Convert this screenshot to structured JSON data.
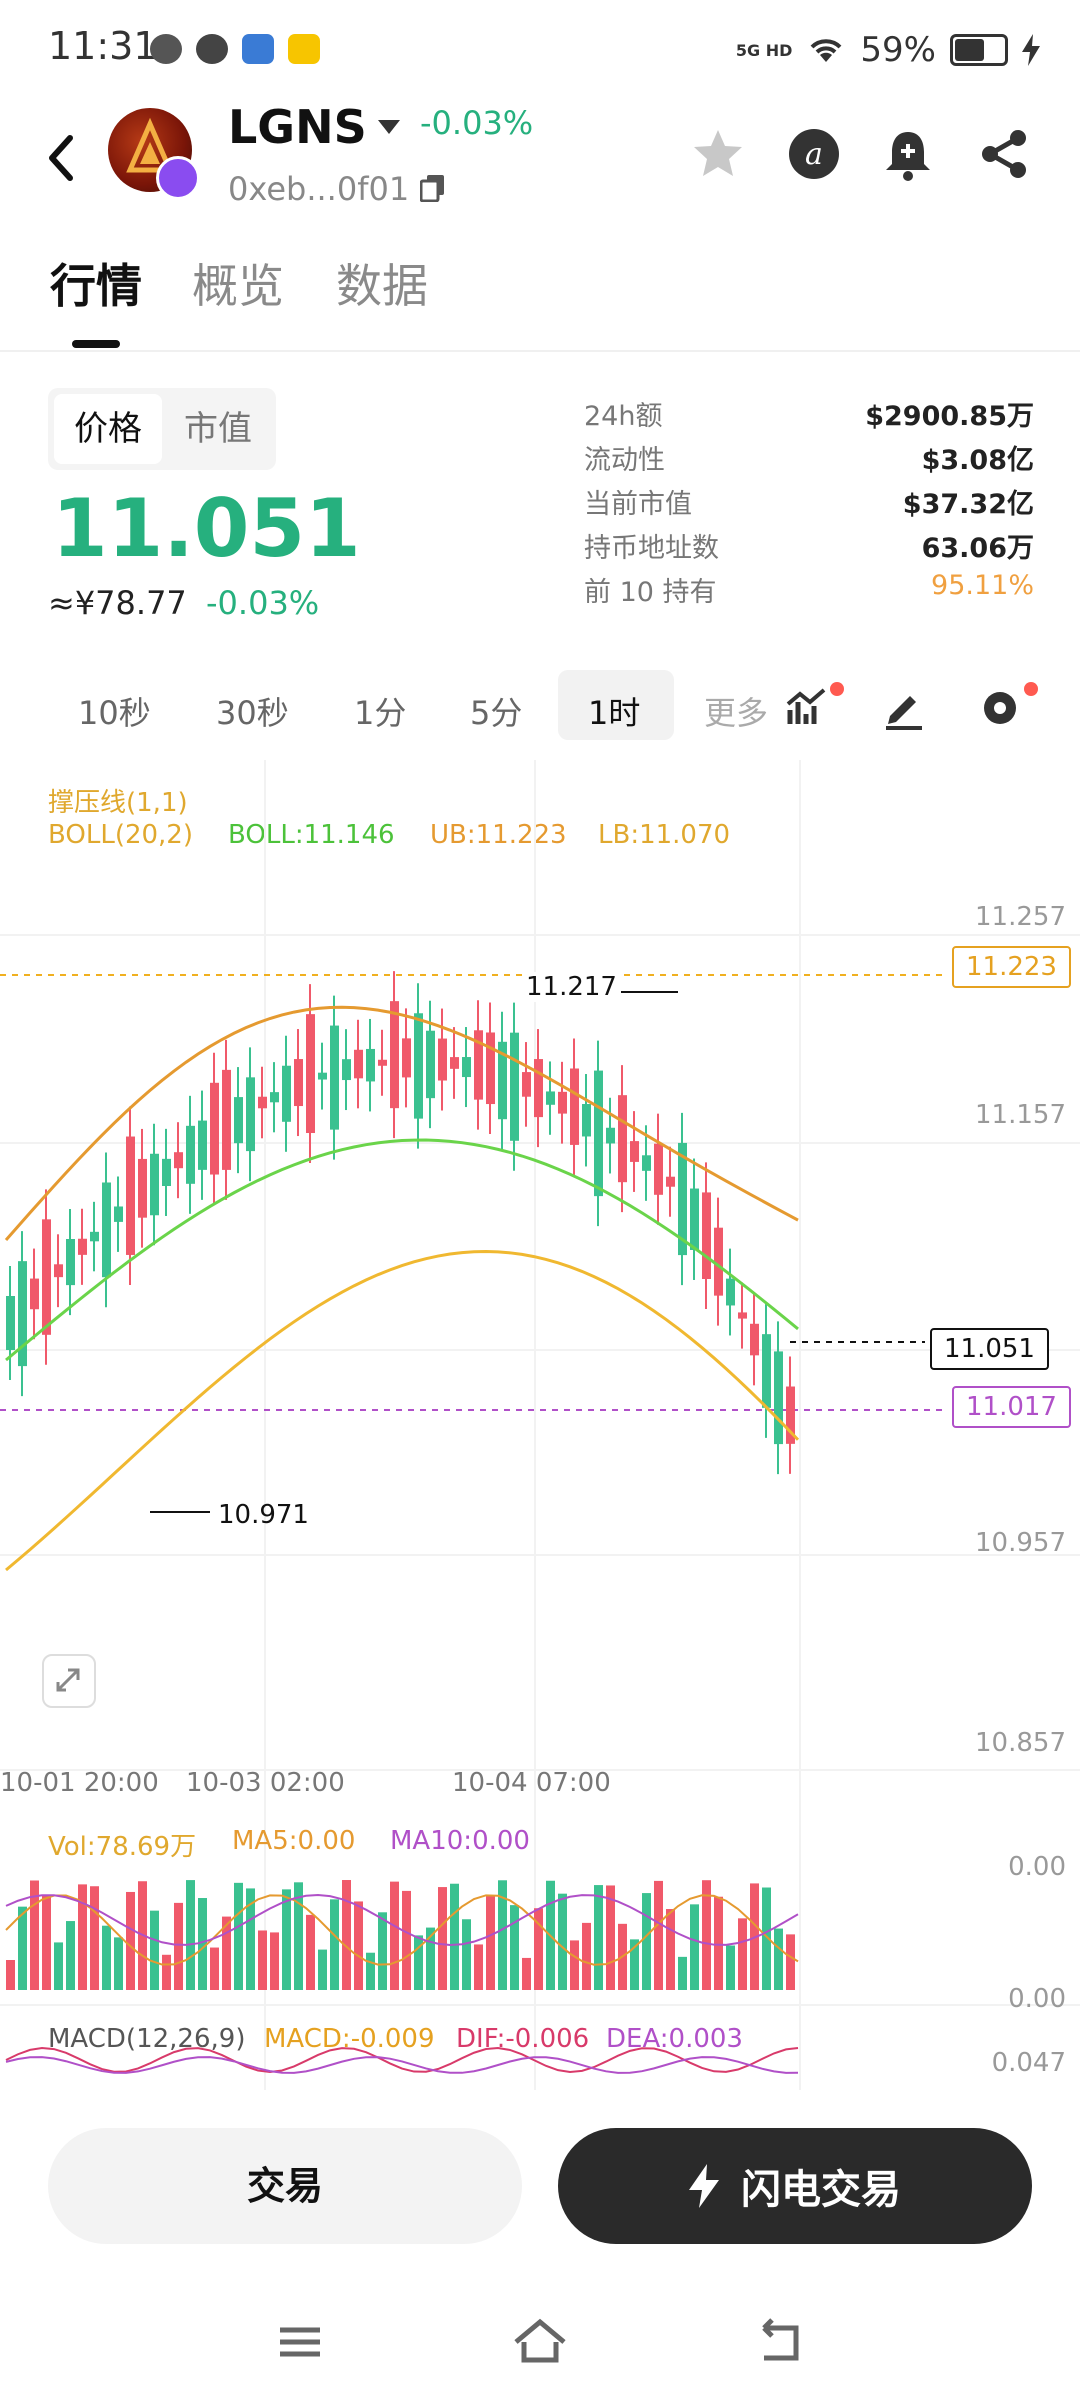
{
  "status": {
    "time": "11:31",
    "network": "5G HD",
    "battery": "59%"
  },
  "header": {
    "token": "LGNS",
    "change": "-0.03%",
    "address": "0xeb...0f01"
  },
  "tabs": [
    "行情",
    "概览",
    "数据"
  ],
  "price_panel": {
    "toggle": [
      "价格",
      "市值"
    ],
    "price": "11.051",
    "cny": "≈¥78.77",
    "change": "-0.03%",
    "stats": [
      {
        "label": "24h额",
        "value": "$2900.85万"
      },
      {
        "label": "流动性",
        "value": "$3.08亿"
      },
      {
        "label": "当前市值",
        "value": "$37.32亿"
      },
      {
        "label": "持币地址数",
        "value": "63.06万"
      },
      {
        "label": "前 10 持有",
        "value": "95.11%"
      }
    ]
  },
  "intervals": [
    "10秒",
    "30秒",
    "1分",
    "5分",
    "1时",
    "更多"
  ],
  "active_interval": "1时",
  "indicators": {
    "sr": "撑压线(1,1)",
    "boll_name": "BOLL(20,2)",
    "boll_mid": "BOLL:11.146",
    "boll_ub": "UB:11.223",
    "boll_lb": "LB:11.070",
    "vol": "Vol:78.69万",
    "ma5": "MA5:0.00",
    "ma10": "MA10:0.00",
    "macd_name": "MACD(12,26,9)",
    "macd": "MACD:-0.009",
    "dif": "DIF:-0.006",
    "dea": "DEA:0.003"
  },
  "chart_data": {
    "type": "candlestick",
    "y_ticks": [
      "11.257",
      "11.157",
      "11.057",
      "10.957",
      "10.857"
    ],
    "x_ticks": [
      "10-01 20:00",
      "10-03 02:00",
      "10-04 07:00"
    ],
    "high_label": "11.217",
    "low_label": "10.971",
    "last_price": "11.051",
    "resistance": "11.223",
    "support": "11.017",
    "vol_ticks": [
      "0.00",
      "0.00"
    ],
    "macd_tick": "0.047",
    "colors": {
      "up": "#3ac190",
      "down": "#f0596a",
      "boll_mid": "#6ad44a",
      "boll_band": "#e59a30",
      "support": "#b050c8"
    }
  },
  "buttons": {
    "trade": "交易",
    "flash": "闪电交易"
  }
}
